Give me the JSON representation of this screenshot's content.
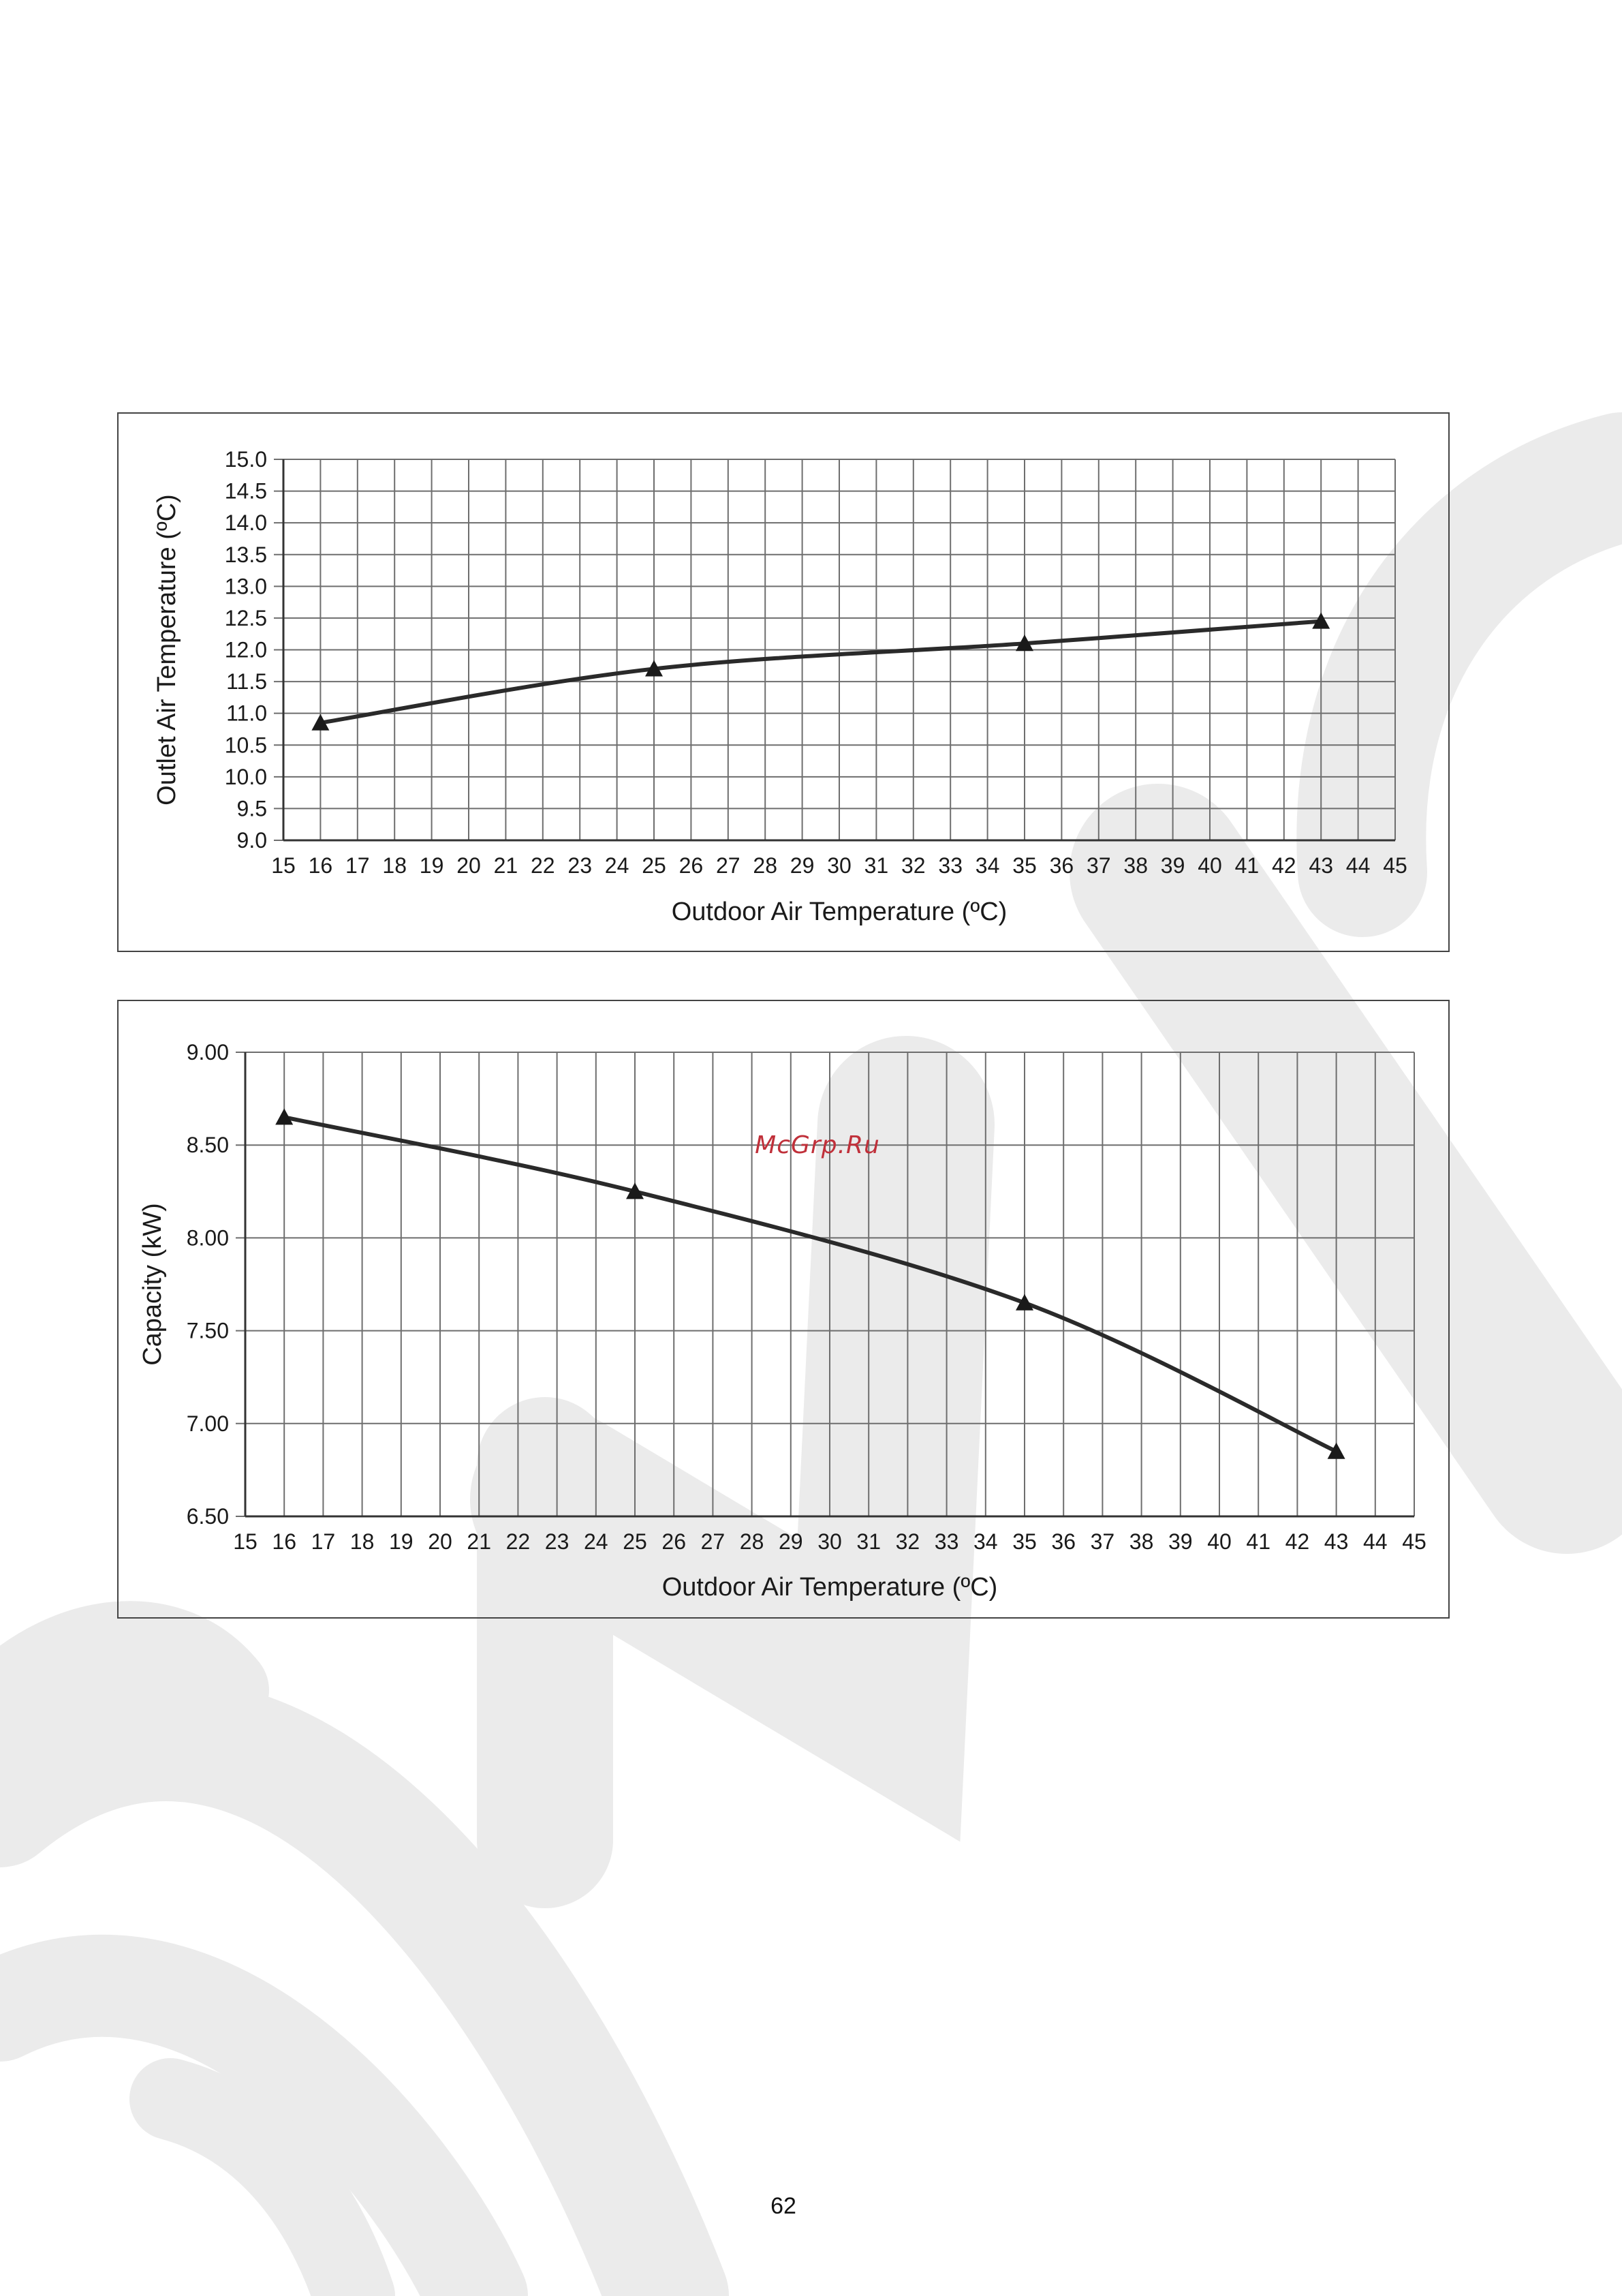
{
  "page": {
    "page_number": "62",
    "site_mark": "McGrp.Ru"
  },
  "colors": {
    "line": "#2a2a2a",
    "grid": "#6e6e6e",
    "watermark": "#ebebeb",
    "site_mark": "#c0303a"
  },
  "chart_data": [
    {
      "type": "line",
      "title": "",
      "xlabel": "Outdoor Air Temperature (ºC)",
      "ylabel": "Outlet Air Temperature (ºC)",
      "xlim": [
        15,
        45
      ],
      "ylim": [
        9.0,
        15.0
      ],
      "x_ticks": [
        "15",
        "16",
        "17",
        "18",
        "19",
        "20",
        "21",
        "22",
        "23",
        "24",
        "25",
        "26",
        "27",
        "28",
        "29",
        "30",
        "31",
        "32",
        "33",
        "34",
        "35",
        "36",
        "37",
        "38",
        "39",
        "40",
        "41",
        "42",
        "43",
        "44",
        "45"
      ],
      "y_ticks": [
        "9.0",
        "9.5",
        "10.0",
        "10.5",
        "11.0",
        "11.5",
        "12.0",
        "12.5",
        "13.0",
        "13.5",
        "14.0",
        "14.5",
        "15.0"
      ],
      "grid": true,
      "series": [
        {
          "x": [
            16,
            25,
            35,
            43
          ],
          "y": [
            10.85,
            11.7,
            12.1,
            12.45
          ],
          "markers": "triangle"
        }
      ]
    },
    {
      "type": "line",
      "title": "",
      "xlabel": "Outdoor Air Temperature (ºC)",
      "ylabel": "Capacity (kW)",
      "xlim": [
        15,
        45
      ],
      "ylim": [
        6.5,
        9.0
      ],
      "x_ticks": [
        "15",
        "16",
        "17",
        "18",
        "19",
        "20",
        "21",
        "22",
        "23",
        "24",
        "25",
        "26",
        "27",
        "28",
        "29",
        "30",
        "31",
        "32",
        "33",
        "34",
        "35",
        "36",
        "37",
        "38",
        "39",
        "40",
        "41",
        "42",
        "43",
        "44",
        "45"
      ],
      "y_ticks": [
        "6.50",
        "7.00",
        "7.50",
        "8.00",
        "8.50",
        "9.00"
      ],
      "grid": true,
      "series": [
        {
          "x": [
            16,
            25,
            35,
            43
          ],
          "y": [
            8.65,
            8.25,
            7.65,
            6.85
          ],
          "markers": "triangle"
        }
      ]
    }
  ]
}
